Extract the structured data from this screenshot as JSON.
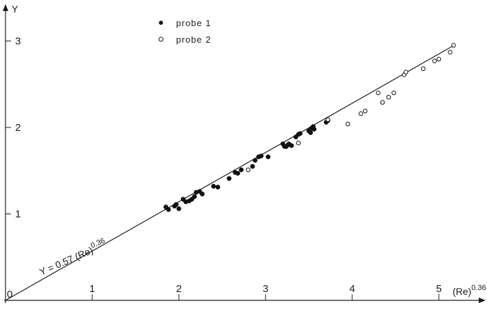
{
  "chart_data": {
    "type": "scatter",
    "title": "",
    "xlabel": "(Re)",
    "xlabel_exponent": "0.36",
    "ylabel": "Y",
    "xlim": [
      0,
      5.5
    ],
    "ylim": [
      0,
      3.1
    ],
    "x_ticks": [
      1,
      2,
      3,
      4,
      5
    ],
    "x_tick_labels": [
      "1",
      "2",
      "3",
      "4",
      "5"
    ],
    "y_ticks": [
      1,
      2,
      3
    ],
    "y_tick_labels": [
      "1",
      "2",
      "3"
    ],
    "origin_label": "0",
    "grid": false,
    "legend_position": "top-center",
    "fit_line": {
      "label_prefix": "Y = 0.57 (Re)",
      "label_exponent": "0.36",
      "slope": 0.57,
      "x_range": [
        0,
        5.15
      ]
    },
    "series": [
      {
        "name": "probe 1",
        "marker": "filled-circle",
        "color": "#111111",
        "points": [
          [
            1.85,
            1.08
          ],
          [
            1.88,
            1.05
          ],
          [
            1.95,
            1.09
          ],
          [
            1.97,
            1.11
          ],
          [
            2.0,
            1.06
          ],
          [
            2.05,
            1.17
          ],
          [
            2.08,
            1.14
          ],
          [
            2.12,
            1.15
          ],
          [
            2.15,
            1.17
          ],
          [
            2.18,
            1.2
          ],
          [
            2.2,
            1.25
          ],
          [
            2.24,
            1.26
          ],
          [
            2.27,
            1.23
          ],
          [
            2.4,
            1.32
          ],
          [
            2.45,
            1.31
          ],
          [
            2.58,
            1.41
          ],
          [
            2.65,
            1.48
          ],
          [
            2.68,
            1.47
          ],
          [
            2.72,
            1.51
          ],
          [
            2.85,
            1.55
          ],
          [
            2.88,
            1.62
          ],
          [
            2.92,
            1.66
          ],
          [
            2.95,
            1.67
          ],
          [
            3.03,
            1.66
          ],
          [
            3.2,
            1.81
          ],
          [
            3.22,
            1.78
          ],
          [
            3.24,
            1.78
          ],
          [
            3.26,
            1.8
          ],
          [
            3.27,
            1.81
          ],
          [
            3.3,
            1.79
          ],
          [
            3.35,
            1.89
          ],
          [
            3.38,
            1.92
          ],
          [
            3.4,
            1.93
          ],
          [
            3.5,
            1.96
          ],
          [
            3.52,
            1.94
          ],
          [
            3.53,
            1.99
          ],
          [
            3.55,
            2.01
          ],
          [
            3.56,
            1.98
          ],
          [
            3.7,
            2.06
          ],
          [
            3.72,
            2.08
          ]
        ]
      },
      {
        "name": "probe 2",
        "marker": "open-circle",
        "color": "#111111",
        "points": [
          [
            2.8,
            1.51
          ],
          [
            3.38,
            1.82
          ],
          [
            3.72,
            2.09
          ],
          [
            3.95,
            2.04
          ],
          [
            4.1,
            2.16
          ],
          [
            4.15,
            2.19
          ],
          [
            4.3,
            2.4
          ],
          [
            4.35,
            2.29
          ],
          [
            4.42,
            2.35
          ],
          [
            4.48,
            2.4
          ],
          [
            4.6,
            2.61
          ],
          [
            4.62,
            2.64
          ],
          [
            4.82,
            2.68
          ],
          [
            4.95,
            2.77
          ],
          [
            5.0,
            2.79
          ],
          [
            5.13,
            2.87
          ],
          [
            5.17,
            2.95
          ]
        ]
      }
    ]
  }
}
